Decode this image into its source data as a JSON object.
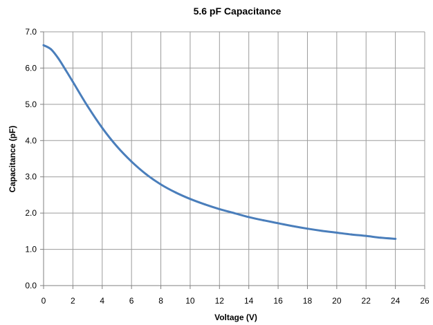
{
  "chart_data": {
    "type": "line",
    "title": "5.6 pF Capacitance",
    "xlabel": "Voltage (V)",
    "ylabel": "Capacitance (pF)",
    "xlim": [
      0,
      26
    ],
    "ylim": [
      0,
      7
    ],
    "x_ticks": [
      0,
      2,
      4,
      6,
      8,
      10,
      12,
      14,
      16,
      18,
      20,
      22,
      24,
      26
    ],
    "y_ticks": [
      "0.0",
      "1.0",
      "2.0",
      "3.0",
      "4.0",
      "5.0",
      "6.0",
      "7.0"
    ],
    "grid": true,
    "colors": {
      "line": "#4a7ebb",
      "grid": "#9b9b9b"
    },
    "series": [
      {
        "x": [
          0,
          0.5,
          1,
          1.5,
          2,
          3,
          4,
          5,
          6,
          7,
          8,
          9,
          10,
          11,
          12,
          13,
          14,
          15,
          16,
          17,
          18,
          19,
          20,
          21,
          22,
          23,
          24
        ],
        "values": [
          6.63,
          6.52,
          6.27,
          5.95,
          5.62,
          4.95,
          4.35,
          3.84,
          3.42,
          3.07,
          2.79,
          2.57,
          2.39,
          2.24,
          2.11,
          2.0,
          1.89,
          1.8,
          1.72,
          1.64,
          1.57,
          1.51,
          1.46,
          1.41,
          1.37,
          1.32,
          1.29
        ]
      }
    ]
  }
}
